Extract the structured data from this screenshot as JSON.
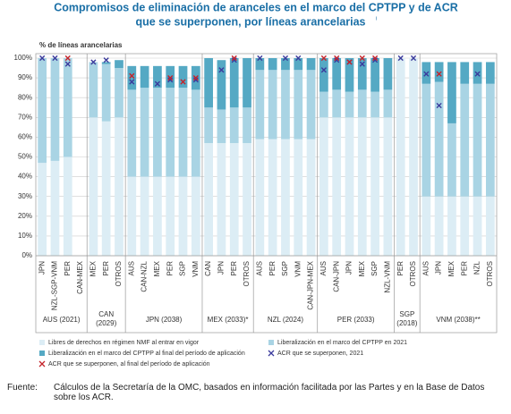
{
  "chart_data": {
    "type": "bar",
    "stacked": true,
    "title": [
      "Compromisos de eliminación de aranceles en el marco del CPTPP y de ACR",
      "que se superponen, por líneas arancelarias"
    ],
    "title_superscript": "i",
    "y_label": "% de líneas arancelarias",
    "ylim": [
      0,
      100
    ],
    "yticks": [
      {
        "value": 0,
        "label": "0%"
      },
      {
        "value": 10,
        "label": "10%"
      },
      {
        "value": 20,
        "label": "20%"
      },
      {
        "value": 30,
        "label": "30%"
      },
      {
        "value": 40,
        "label": "40%"
      },
      {
        "value": 50,
        "label": "50%"
      },
      {
        "value": 60,
        "label": "60%"
      },
      {
        "value": 70,
        "label": "70%"
      },
      {
        "value": 80,
        "label": "80%"
      },
      {
        "value": 90,
        "label": "90%"
      },
      {
        "value": 100,
        "label": "100%"
      }
    ],
    "grid": true,
    "groups": [
      {
        "label": "AUS (2021)",
        "categories": [
          "JPN",
          "NZL-SGP-VNM",
          "PER",
          "CAN-MEX"
        ]
      },
      {
        "label": "CAN\n(2029)",
        "categories": [
          "MEX",
          "PER",
          "OTROS"
        ]
      },
      {
        "label": "JPN (2038)",
        "categories": [
          "AUS",
          "CAN-NZL",
          "MEX",
          "PER",
          "SGP",
          "VNM"
        ]
      },
      {
        "label": "MEX (2033)*",
        "categories": [
          "CAN",
          "JPN",
          "PER",
          "OTROS"
        ]
      },
      {
        "label": "NZL (2024)",
        "categories": [
          "AUS",
          "PER",
          "SGP",
          "VNM",
          "CAN-JPN-MEX"
        ]
      },
      {
        "label": "PER (2033)",
        "categories": [
          "AUS",
          "CAN-JPN",
          "JPN",
          "MEX",
          "SGP",
          "NZL-VNM"
        ]
      },
      {
        "label": "SGP\n(2018)",
        "categories": [
          "PER",
          "OTROS"
        ]
      },
      {
        "label": "VNM (2038)**",
        "categories": [
          "AUS",
          "JPN",
          "MEX",
          "PER",
          "NZL",
          "OTROS"
        ]
      }
    ],
    "series": [
      {
        "name": "Libres de derechos en régimen NMF al entrar en vigor",
        "color": "#dcedf5",
        "values": [
          47,
          48,
          50,
          null,
          70,
          68,
          70,
          40,
          40,
          40,
          40,
          40,
          40,
          57,
          57,
          57,
          57,
          59,
          59,
          59,
          59,
          59,
          70,
          70,
          70,
          70,
          70,
          70,
          100,
          100,
          30,
          30,
          30,
          30,
          30,
          30
        ]
      },
      {
        "name": "Liberalización en el marco del CPTPP en 2021",
        "color": "#a9d4e4",
        "values": [
          53,
          52,
          50,
          null,
          28,
          29,
          25,
          44,
          45,
          45,
          45,
          45,
          44,
          18,
          17,
          18,
          18,
          35,
          35,
          35,
          35,
          35,
          13,
          14,
          13,
          14,
          13,
          14,
          0,
          0,
          57,
          58,
          37,
          57,
          57,
          57
        ]
      },
      {
        "name": "Liberalización en el marco del CPTPP al final del período de aplicación",
        "color": "#55a9c4",
        "values": [
          0,
          0,
          0,
          null,
          0,
          1,
          4,
          12,
          11,
          11,
          11,
          11,
          12,
          25,
          25,
          25,
          25,
          6,
          6,
          6,
          6,
          6,
          17,
          16,
          17,
          16,
          17,
          16,
          0,
          0,
          11,
          10,
          31,
          11,
          11,
          11
        ]
      }
    ],
    "markers": [
      {
        "name": "ACR que se superponen, 2021",
        "color": "#3a3a9c",
        "values": [
          100,
          100,
          97,
          null,
          98,
          99,
          null,
          88,
          null,
          87,
          89,
          null,
          89,
          null,
          94,
          99,
          null,
          100,
          null,
          100,
          100,
          null,
          94,
          99,
          98,
          97,
          99,
          null,
          100,
          100,
          92,
          76,
          null,
          null,
          92,
          null
        ]
      },
      {
        "name": "ACR que se superponen, al final del período de aplicación",
        "color": "#c4242b",
        "values": [
          null,
          null,
          100,
          null,
          null,
          null,
          null,
          91,
          null,
          null,
          90,
          88,
          90,
          null,
          null,
          100,
          null,
          null,
          null,
          null,
          null,
          null,
          100,
          100,
          98,
          100,
          100,
          null,
          null,
          null,
          null,
          92,
          null,
          null,
          null,
          null
        ]
      }
    ],
    "source_label": "Fuente:",
    "source": "Cálculos de la Secretaría de la OMC, basados en información facilitada por las Partes y en la Base de Datos sobre los ACR."
  }
}
